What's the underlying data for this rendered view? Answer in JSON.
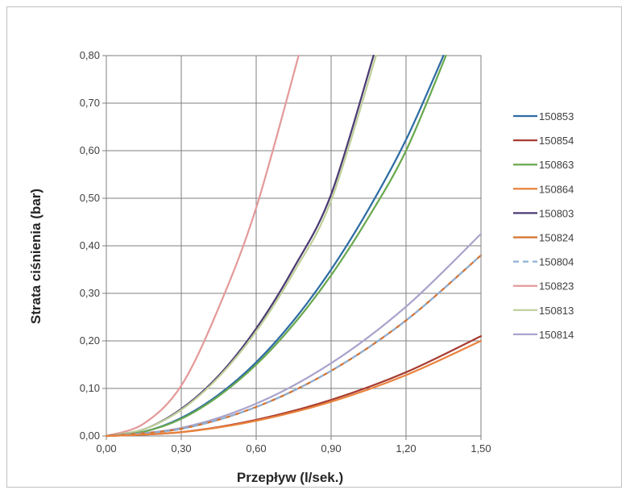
{
  "chart_data": {
    "type": "line",
    "title": "",
    "xlabel": "Przepływ (l/sek.)",
    "ylabel": "Strata ciśnienia (bar)",
    "xlim": [
      0,
      1.5
    ],
    "ylim": [
      0,
      0.8
    ],
    "x_ticks": [
      "0,00",
      "0,30",
      "0,60",
      "0,90",
      "1,20",
      "1,50"
    ],
    "y_ticks": [
      "0,00",
      "0,10",
      "0,20",
      "0,30",
      "0,40",
      "0,50",
      "0,60",
      "0,70",
      "0,80"
    ],
    "grid": true,
    "legend_position": "right",
    "series": [
      {
        "name": "150853",
        "color": "#2e6ca4",
        "dashed": false,
        "x": [
          0,
          0.15,
          0.3,
          0.45,
          0.6,
          0.75,
          0.9,
          1.05,
          1.2,
          1.35
        ],
        "y": [
          0,
          0.009,
          0.038,
          0.087,
          0.155,
          0.243,
          0.35,
          0.477,
          0.623,
          0.8
        ]
      },
      {
        "name": "150854",
        "color": "#a83d32",
        "dashed": false,
        "x": [
          0,
          0.3,
          0.6,
          0.9,
          1.2,
          1.5
        ],
        "y": [
          0,
          0.008,
          0.034,
          0.076,
          0.134,
          0.21
        ]
      },
      {
        "name": "150863",
        "color": "#6aa84f",
        "dashed": false,
        "x": [
          0,
          0.15,
          0.3,
          0.45,
          0.6,
          0.75,
          0.9,
          1.05,
          1.2,
          1.36
        ],
        "y": [
          0,
          0.009,
          0.036,
          0.084,
          0.15,
          0.235,
          0.338,
          0.46,
          0.6,
          0.8
        ]
      },
      {
        "name": "150864",
        "color": "#e9823c",
        "dashed": false,
        "x": [
          0,
          0.3,
          0.6,
          0.9,
          1.2,
          1.5
        ],
        "y": [
          0,
          0.008,
          0.032,
          0.072,
          0.128,
          0.2
        ]
      },
      {
        "name": "150803",
        "color": "#4b3a73",
        "dashed": false,
        "x": [
          0,
          0.15,
          0.3,
          0.45,
          0.6,
          0.75,
          0.9,
          1.07
        ],
        "y": [
          0,
          0.014,
          0.057,
          0.127,
          0.226,
          0.353,
          0.508,
          0.8
        ]
      },
      {
        "name": "150824",
        "color": "#d5702c",
        "dashed": false,
        "x": [
          0,
          0.3,
          0.6,
          0.9,
          1.2,
          1.5
        ],
        "y": [
          0,
          0.015,
          0.061,
          0.137,
          0.243,
          0.38
        ]
      },
      {
        "name": "150804",
        "color": "#8eb0d6",
        "dashed": true,
        "x": [
          0,
          0.3,
          0.6,
          0.9,
          1.2,
          1.5
        ],
        "y": [
          0,
          0.015,
          0.061,
          0.137,
          0.243,
          0.38
        ]
      },
      {
        "name": "150823",
        "color": "#e49a9a",
        "dashed": false,
        "x": [
          0,
          0.15,
          0.3,
          0.45,
          0.6,
          0.77
        ],
        "y": [
          0,
          0.026,
          0.106,
          0.27,
          0.48,
          0.8
        ]
      },
      {
        "name": "150813",
        "color": "#bfd09a",
        "dashed": false,
        "x": [
          0,
          0.15,
          0.3,
          0.45,
          0.6,
          0.75,
          0.9,
          1.08
        ],
        "y": [
          0,
          0.014,
          0.055,
          0.124,
          0.22,
          0.344,
          0.495,
          0.8
        ]
      },
      {
        "name": "150814",
        "color": "#a9a4cc",
        "dashed": false,
        "x": [
          0,
          0.3,
          0.6,
          0.9,
          1.2,
          1.5
        ],
        "y": [
          0,
          0.017,
          0.068,
          0.153,
          0.272,
          0.425
        ]
      }
    ]
  }
}
